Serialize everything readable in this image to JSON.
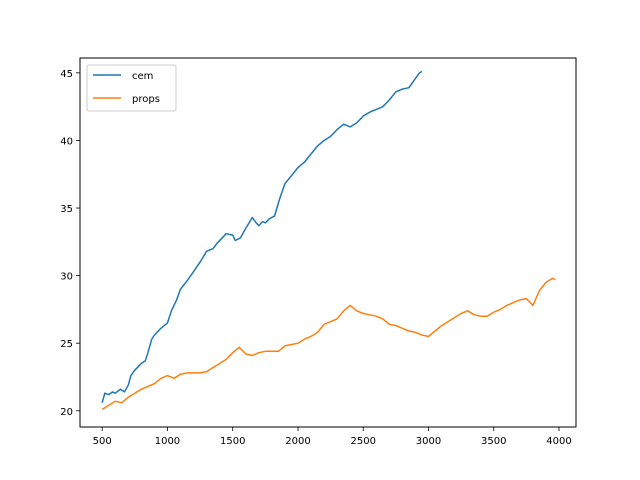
{
  "chart_data": {
    "type": "line",
    "title": "",
    "xlabel": "",
    "ylabel": "",
    "xlim": [
      330,
      4130
    ],
    "ylim": [
      18.8,
      46.1
    ],
    "xticks": [
      500,
      1000,
      1500,
      2000,
      2500,
      3000,
      3500,
      4000
    ],
    "yticks": [
      20,
      25,
      30,
      35,
      40,
      45
    ],
    "grid": false,
    "legend_position": "upper left",
    "series": [
      {
        "name": "cem",
        "color": "#1f77b4",
        "points": [
          [
            500,
            20.6
          ],
          [
            520,
            21.3
          ],
          [
            550,
            21.2
          ],
          [
            580,
            21.4
          ],
          [
            600,
            21.3
          ],
          [
            640,
            21.6
          ],
          [
            670,
            21.4
          ],
          [
            700,
            21.9
          ],
          [
            720,
            22.6
          ],
          [
            750,
            23.0
          ],
          [
            780,
            23.3
          ],
          [
            800,
            23.5
          ],
          [
            830,
            23.7
          ],
          [
            850,
            24.3
          ],
          [
            880,
            25.3
          ],
          [
            900,
            25.6
          ],
          [
            950,
            26.1
          ],
          [
            1000,
            26.5
          ],
          [
            1030,
            27.4
          ],
          [
            1070,
            28.2
          ],
          [
            1100,
            29.0
          ],
          [
            1150,
            29.6
          ],
          [
            1200,
            30.3
          ],
          [
            1250,
            31.0
          ],
          [
            1300,
            31.8
          ],
          [
            1350,
            32.0
          ],
          [
            1380,
            32.4
          ],
          [
            1420,
            32.8
          ],
          [
            1450,
            33.1
          ],
          [
            1500,
            33.0
          ],
          [
            1520,
            32.6
          ],
          [
            1560,
            32.8
          ],
          [
            1600,
            33.5
          ],
          [
            1650,
            34.3
          ],
          [
            1680,
            33.9
          ],
          [
            1700,
            33.7
          ],
          [
            1730,
            34.0
          ],
          [
            1750,
            33.9
          ],
          [
            1780,
            34.2
          ],
          [
            1820,
            34.4
          ],
          [
            1860,
            35.7
          ],
          [
            1900,
            36.8
          ],
          [
            1950,
            37.4
          ],
          [
            2000,
            38.0
          ],
          [
            2050,
            38.4
          ],
          [
            2100,
            39.0
          ],
          [
            2150,
            39.6
          ],
          [
            2200,
            40.0
          ],
          [
            2250,
            40.3
          ],
          [
            2300,
            40.8
          ],
          [
            2350,
            41.2
          ],
          [
            2400,
            41.0
          ],
          [
            2450,
            41.3
          ],
          [
            2500,
            41.8
          ],
          [
            2550,
            42.1
          ],
          [
            2600,
            42.3
          ],
          [
            2650,
            42.5
          ],
          [
            2700,
            43.0
          ],
          [
            2750,
            43.6
          ],
          [
            2800,
            43.8
          ],
          [
            2850,
            43.9
          ],
          [
            2900,
            44.6
          ],
          [
            2930,
            45.0
          ],
          [
            2950,
            45.1
          ]
        ]
      },
      {
        "name": "props",
        "color": "#ff7f0e",
        "points": [
          [
            500,
            20.1
          ],
          [
            550,
            20.4
          ],
          [
            600,
            20.7
          ],
          [
            650,
            20.6
          ],
          [
            700,
            21.0
          ],
          [
            750,
            21.3
          ],
          [
            800,
            21.6
          ],
          [
            850,
            21.8
          ],
          [
            900,
            22.0
          ],
          [
            950,
            22.4
          ],
          [
            1000,
            22.6
          ],
          [
            1050,
            22.4
          ],
          [
            1100,
            22.7
          ],
          [
            1150,
            22.8
          ],
          [
            1200,
            22.8
          ],
          [
            1250,
            22.8
          ],
          [
            1300,
            22.9
          ],
          [
            1350,
            23.2
          ],
          [
            1400,
            23.5
          ],
          [
            1450,
            23.8
          ],
          [
            1500,
            24.3
          ],
          [
            1550,
            24.7
          ],
          [
            1600,
            24.2
          ],
          [
            1650,
            24.1
          ],
          [
            1700,
            24.3
          ],
          [
            1750,
            24.4
          ],
          [
            1800,
            24.4
          ],
          [
            1850,
            24.4
          ],
          [
            1900,
            24.8
          ],
          [
            1950,
            24.9
          ],
          [
            2000,
            25.0
          ],
          [
            2050,
            25.3
          ],
          [
            2100,
            25.5
          ],
          [
            2150,
            25.8
          ],
          [
            2200,
            26.4
          ],
          [
            2250,
            26.6
          ],
          [
            2300,
            26.8
          ],
          [
            2350,
            27.4
          ],
          [
            2400,
            27.8
          ],
          [
            2450,
            27.4
          ],
          [
            2500,
            27.2
          ],
          [
            2550,
            27.1
          ],
          [
            2600,
            27.0
          ],
          [
            2650,
            26.8
          ],
          [
            2700,
            26.4
          ],
          [
            2750,
            26.3
          ],
          [
            2800,
            26.1
          ],
          [
            2850,
            25.9
          ],
          [
            2900,
            25.8
          ],
          [
            2950,
            25.6
          ],
          [
            3000,
            25.5
          ],
          [
            3050,
            25.9
          ],
          [
            3100,
            26.3
          ],
          [
            3150,
            26.6
          ],
          [
            3200,
            26.9
          ],
          [
            3250,
            27.2
          ],
          [
            3300,
            27.4
          ],
          [
            3350,
            27.1
          ],
          [
            3400,
            27.0
          ],
          [
            3450,
            27.0
          ],
          [
            3500,
            27.3
          ],
          [
            3550,
            27.5
          ],
          [
            3600,
            27.8
          ],
          [
            3650,
            28.0
          ],
          [
            3700,
            28.2
          ],
          [
            3750,
            28.3
          ],
          [
            3800,
            27.8
          ],
          [
            3850,
            28.9
          ],
          [
            3900,
            29.5
          ],
          [
            3950,
            29.8
          ],
          [
            3970,
            29.7
          ]
        ]
      }
    ]
  }
}
